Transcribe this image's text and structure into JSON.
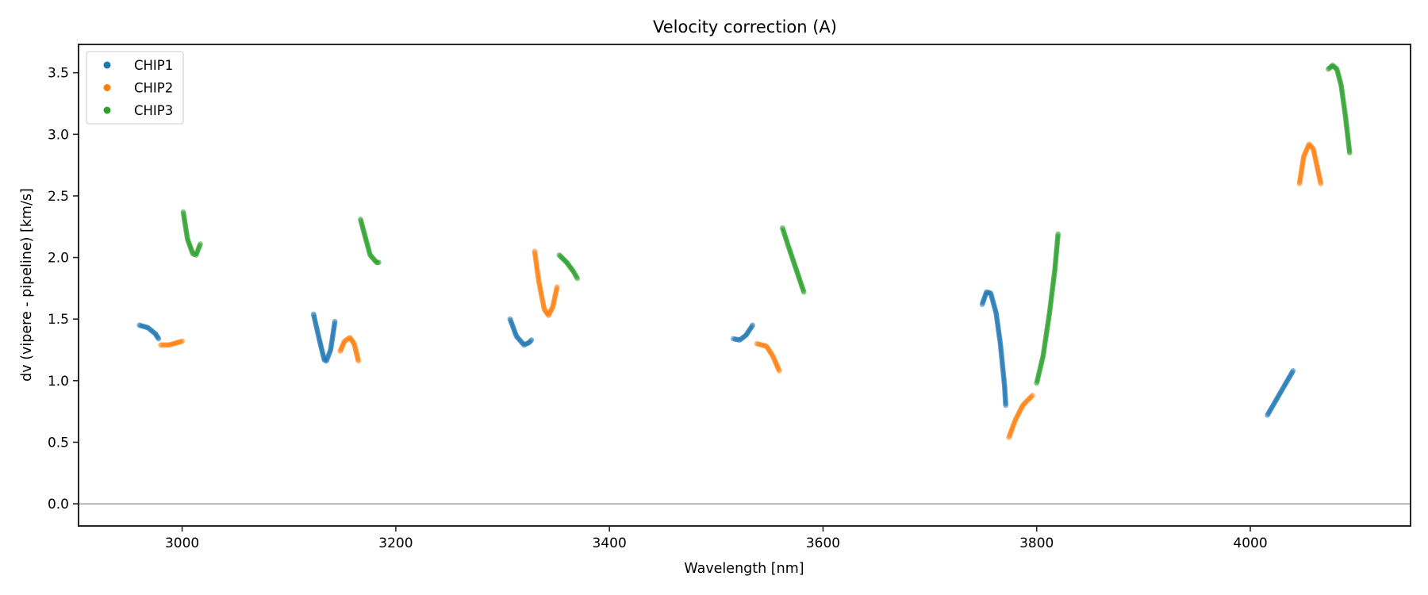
{
  "chart_data": {
    "type": "scatter",
    "title": "Velocity correction (A)",
    "xlabel": "Wavelength [nm]",
    "ylabel": "dv (vipere - pipeline) [km/s]",
    "xlim": [
      2903,
      4150
    ],
    "ylim": [
      -0.18,
      3.73
    ],
    "xticks": [
      3000,
      3200,
      3400,
      3600,
      3800,
      4000
    ],
    "xtick_labels": [
      "3000",
      "3200",
      "3400",
      "3600",
      "3800",
      "4000"
    ],
    "yticks": [
      0.0,
      0.5,
      1.0,
      1.5,
      2.0,
      2.5,
      3.0,
      3.5
    ],
    "ytick_labels": [
      "0.0",
      "0.5",
      "1.0",
      "1.5",
      "2.0",
      "2.5",
      "3.0",
      "3.5"
    ],
    "grid": false,
    "reference_line": {
      "y": 0.0,
      "color": "#808080"
    },
    "legend": {
      "placement": "top-left",
      "entries": [
        "CHIP1",
        "CHIP2",
        "CHIP3"
      ]
    },
    "series": [
      {
        "name": "CHIP1",
        "color": "#1f77b4",
        "segments": [
          [
            [
              2960,
              1.45
            ],
            [
              2968,
              1.43
            ],
            [
              2975,
              1.38
            ],
            [
              2978,
              1.34
            ]
          ],
          [
            [
              3123,
              1.54
            ],
            [
              3128,
              1.35
            ],
            [
              3133,
              1.17
            ],
            [
              3135,
              1.16
            ],
            [
              3139,
              1.25
            ],
            [
              3143,
              1.48
            ]
          ],
          [
            [
              3307,
              1.5
            ],
            [
              3313,
              1.36
            ],
            [
              3320,
              1.29
            ],
            [
              3325,
              1.31
            ],
            [
              3327,
              1.33
            ]
          ],
          [
            [
              3516,
              1.34
            ],
            [
              3522,
              1.33
            ],
            [
              3528,
              1.37
            ],
            [
              3534,
              1.45
            ]
          ],
          [
            [
              3749,
              1.62
            ],
            [
              3753,
              1.72
            ],
            [
              3757,
              1.71
            ],
            [
              3762,
              1.55
            ],
            [
              3766,
              1.3
            ],
            [
              3770,
              0.95
            ],
            [
              3771,
              0.8
            ]
          ],
          [
            [
              4016,
              0.72
            ],
            [
              4028,
              0.9
            ],
            [
              4040,
              1.08
            ]
          ]
        ]
      },
      {
        "name": "CHIP2",
        "color": "#ff7f0e",
        "segments": [
          [
            [
              2980,
              1.29
            ],
            [
              2988,
              1.29
            ],
            [
              2996,
              1.31
            ],
            [
              3000,
              1.32
            ]
          ],
          [
            [
              3148,
              1.24
            ],
            [
              3152,
              1.32
            ],
            [
              3157,
              1.35
            ],
            [
              3161,
              1.3
            ],
            [
              3165,
              1.16
            ]
          ],
          [
            [
              3330,
              2.05
            ],
            [
              3334,
              1.8
            ],
            [
              3339,
              1.58
            ],
            [
              3343,
              1.53
            ],
            [
              3347,
              1.6
            ],
            [
              3351,
              1.76
            ]
          ],
          [
            [
              3538,
              1.3
            ],
            [
              3547,
              1.28
            ],
            [
              3553,
              1.2
            ],
            [
              3559,
              1.08
            ]
          ],
          [
            [
              3774,
              0.54
            ],
            [
              3780,
              0.68
            ],
            [
              3787,
              0.8
            ],
            [
              3796,
              0.88
            ]
          ],
          [
            [
              4046,
              2.6
            ],
            [
              4050,
              2.82
            ],
            [
              4055,
              2.92
            ],
            [
              4059,
              2.88
            ],
            [
              4063,
              2.72
            ],
            [
              4066,
              2.6
            ]
          ]
        ]
      },
      {
        "name": "CHIP3",
        "color": "#2ca02c",
        "segments": [
          [
            [
              3001,
              2.37
            ],
            [
              3005,
              2.15
            ],
            [
              3010,
              2.03
            ],
            [
              3013,
              2.02
            ],
            [
              3017,
              2.11
            ]
          ],
          [
            [
              3167,
              2.31
            ],
            [
              3171,
              2.18
            ],
            [
              3176,
              2.02
            ],
            [
              3182,
              1.96
            ],
            [
              3184,
              1.96
            ]
          ],
          [
            [
              3353,
              2.02
            ],
            [
              3360,
              1.96
            ],
            [
              3366,
              1.89
            ],
            [
              3370,
              1.83
            ]
          ],
          [
            [
              3562,
              2.24
            ],
            [
              3568,
              2.08
            ],
            [
              3575,
              1.9
            ],
            [
              3582,
              1.72
            ]
          ],
          [
            [
              3800,
              0.98
            ],
            [
              3806,
              1.2
            ],
            [
              3812,
              1.55
            ],
            [
              3817,
              1.9
            ],
            [
              3820,
              2.19
            ]
          ],
          [
            [
              4073,
              3.53
            ],
            [
              4077,
              3.56
            ],
            [
              4081,
              3.53
            ],
            [
              4085,
              3.4
            ],
            [
              4089,
              3.15
            ],
            [
              4093,
              2.85
            ]
          ]
        ]
      }
    ]
  }
}
